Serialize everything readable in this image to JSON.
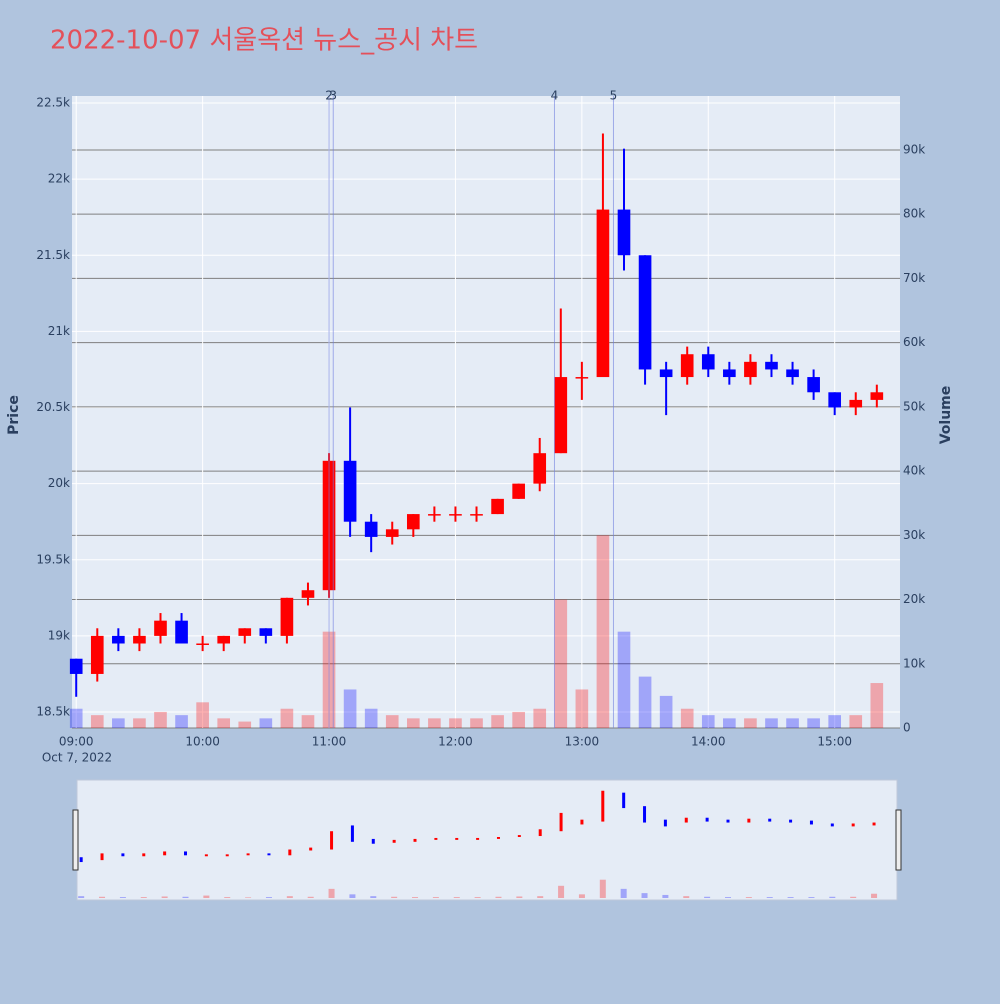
{
  "chart_data": {
    "type": "candlestick",
    "title": "2022-10-07 서울옥션 뉴스_공시 차트",
    "x": [
      "09:00",
      "09:10",
      "09:20",
      "09:30",
      "09:40",
      "09:50",
      "10:00",
      "10:10",
      "10:20",
      "10:30",
      "10:40",
      "10:50",
      "11:00",
      "11:10",
      "11:20",
      "11:30",
      "11:40",
      "11:50",
      "12:00",
      "12:10",
      "12:20",
      "12:30",
      "12:40",
      "12:50",
      "13:00",
      "13:10",
      "13:20",
      "13:30",
      "13:40",
      "13:50",
      "14:00",
      "14:10",
      "14:20",
      "14:30",
      "14:40",
      "14:50",
      "15:00",
      "15:10",
      "15:20"
    ],
    "open": [
      18850,
      18750,
      19000,
      18950,
      19000,
      19100,
      18950,
      18950,
      19000,
      19050,
      19000,
      19250,
      19300,
      20150,
      19750,
      19650,
      19700,
      19800,
      19800,
      19800,
      19800,
      19900,
      20000,
      20200,
      20700,
      20700,
      21800,
      21500,
      20750,
      20700,
      20850,
      20750,
      20700,
      20800,
      20750,
      20700,
      20600,
      20500,
      20550
    ],
    "high": [
      18850,
      19050,
      19050,
      19050,
      19150,
      19150,
      19000,
      19000,
      19050,
      19050,
      19250,
      19350,
      20200,
      20500,
      19800,
      19750,
      19800,
      19850,
      19850,
      19850,
      19900,
      20000,
      20300,
      21150,
      20800,
      22300,
      22200,
      21500,
      20800,
      20900,
      20900,
      20800,
      20850,
      20850,
      20800,
      20750,
      20600,
      20600,
      20650
    ],
    "low": [
      18600,
      18700,
      18900,
      18900,
      18950,
      18950,
      18900,
      18900,
      18950,
      18950,
      18950,
      19200,
      19250,
      19650,
      19550,
      19600,
      19650,
      19750,
      19750,
      19750,
      19800,
      19900,
      19950,
      20200,
      20550,
      20700,
      21400,
      20650,
      20450,
      20650,
      20700,
      20650,
      20650,
      20700,
      20650,
      20550,
      20450,
      20450,
      20500
    ],
    "close": [
      18750,
      19000,
      18950,
      19000,
      19100,
      18950,
      18950,
      19000,
      19050,
      19000,
      19250,
      19300,
      20150,
      19750,
      19650,
      19700,
      19800,
      19800,
      19800,
      19800,
      19900,
      20000,
      20200,
      20700,
      20700,
      21800,
      21500,
      20750,
      20700,
      20850,
      20750,
      20700,
      20800,
      20750,
      20700,
      20600,
      20500,
      20550,
      20600
    ],
    "volume": [
      3000,
      2000,
      1500,
      1500,
      2500,
      2000,
      4000,
      1500,
      1000,
      1500,
      3000,
      2000,
      15000,
      6000,
      3000,
      2000,
      1500,
      1500,
      1500,
      1500,
      2000,
      2500,
      3000,
      20000,
      6000,
      30000,
      15000,
      8000,
      5000,
      3000,
      2000,
      1500,
      1500,
      1500,
      1500,
      1500,
      2000,
      2000,
      7000
    ],
    "increasing_color": "#ff0000",
    "decreasing_color": "#0000ff",
    "xlim": [
      "08:58",
      "15:31"
    ],
    "xticks": [
      "09:00",
      "10:00",
      "11:00",
      "12:00",
      "13:00",
      "14:00",
      "15:00"
    ],
    "x_date_label": "Oct 7, 2022",
    "ylim": [
      18395,
      22546
    ],
    "yticks": [
      {
        "value": 18500,
        "label": "18.5k"
      },
      {
        "value": 19000,
        "label": "19k"
      },
      {
        "value": 19500,
        "label": "19.5k"
      },
      {
        "value": 20000,
        "label": "20k"
      },
      {
        "value": 20500,
        "label": "20.5k"
      },
      {
        "value": 21000,
        "label": "21k"
      },
      {
        "value": 21500,
        "label": "21.5k"
      },
      {
        "value": 22000,
        "label": "22k"
      },
      {
        "value": 22500,
        "label": "22.5k"
      }
    ],
    "y2lim": [
      0,
      98400
    ],
    "y2ticks": [
      0,
      {
        "value": 10000,
        "label": "10k"
      },
      {
        "value": 20000,
        "label": "20k"
      },
      {
        "value": 30000,
        "label": "30k"
      },
      {
        "value": 40000,
        "label": "40k"
      },
      {
        "value": 50000,
        "label": "50k"
      },
      {
        "value": 60000,
        "label": "60k"
      },
      {
        "value": 70000,
        "label": "70k"
      },
      {
        "value": 80000,
        "label": "80k"
      },
      {
        "value": 90000,
        "label": "90k"
      }
    ],
    "y_label": "Price",
    "y2_label": "Volume",
    "news": [
      {
        "x": "11:00",
        "label": "2"
      },
      {
        "x": "11:02",
        "label": "3"
      },
      {
        "x": "12:47",
        "label": "4"
      },
      {
        "x": "13:15",
        "label": "5"
      }
    ],
    "grid": true,
    "rangeslider": true
  }
}
